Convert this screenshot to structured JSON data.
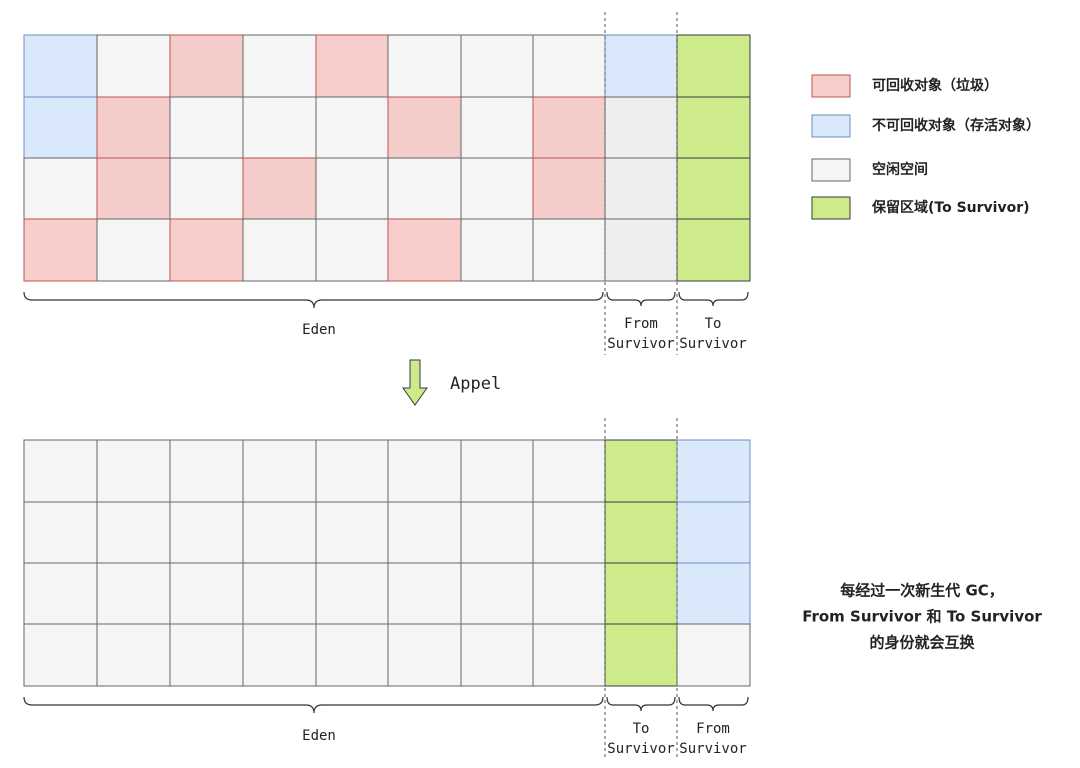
{
  "legend": [
    "可回收对象（垃圾）",
    "不可回收对象（存活对象）",
    "空闲空间",
    "保留区域(To Survivor)"
  ],
  "top_labels": {
    "eden": "Eden",
    "first": [
      "From",
      "Survivor"
    ],
    "second": [
      "To",
      "Survivor"
    ]
  },
  "arrow_label": "Appel",
  "bottom_labels": {
    "eden": "Eden",
    "first": [
      "To",
      "Survivor"
    ],
    "second": [
      "From",
      "Survivor"
    ]
  },
  "note": [
    "每经过一次新生代 GC，",
    "From Survivor 和 To Survivor",
    "的身份就会互换"
  ]
}
